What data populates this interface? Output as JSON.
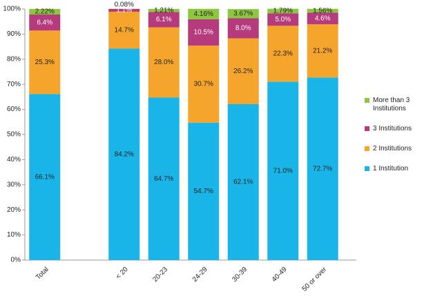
{
  "chart_data": {
    "type": "stacked_bar",
    "categories": [
      "Total",
      null,
      "< 20",
      "20-23",
      "24-29",
      "30-39",
      "40-49",
      "50 or over"
    ],
    "series": [
      {
        "name": "1 Institution",
        "color": "#19b5e8",
        "values": [
          66.1,
          null,
          84.2,
          64.7,
          54.7,
          62.1,
          71.0,
          72.7
        ],
        "value_labels": [
          "66.1%",
          null,
          "84.2%",
          "64.7%",
          "54.7%",
          "62.1%",
          "71.0%",
          "72.7%"
        ]
      },
      {
        "name": "2 Institutions",
        "color": "#f6a52c",
        "values": [
          25.3,
          null,
          14.7,
          28.0,
          30.7,
          26.2,
          22.3,
          21.2
        ],
        "value_labels": [
          "25.3%",
          null,
          "14.7%",
          "28.0%",
          "30.7%",
          "26.2%",
          "22.3%",
          "21.2%"
        ]
      },
      {
        "name": "3 Institutions",
        "color": "#b53b7c",
        "values": [
          6.4,
          null,
          1.1,
          6.1,
          10.5,
          8.0,
          5.0,
          4.6
        ],
        "value_labels": [
          "6.4%",
          null,
          "1.1%",
          "6.1%",
          "10.5%",
          "8.0%",
          "5.0%",
          "4.6%"
        ]
      },
      {
        "name": "More than 3 Institutions",
        "color": "#8dc63f",
        "values": [
          2.22,
          null,
          0.08,
          1.21,
          4.16,
          3.67,
          1.79,
          1.56
        ],
        "value_labels": [
          "2.22%",
          null,
          "0.08%",
          "1.21%",
          "4.16%",
          "3.67%",
          "1.79%",
          "1.56%"
        ]
      }
    ],
    "ylim": [
      0,
      100
    ],
    "yticks": [
      {
        "value": 0,
        "label": "0%"
      },
      {
        "value": 10,
        "label": "10%"
      },
      {
        "value": 20,
        "label": "20%"
      },
      {
        "value": 30,
        "label": "30%"
      },
      {
        "value": 40,
        "label": "40%"
      },
      {
        "value": 50,
        "label": "50%"
      },
      {
        "value": 60,
        "label": "60%"
      },
      {
        "value": 70,
        "label": "70%"
      },
      {
        "value": 80,
        "label": "80%"
      },
      {
        "value": 90,
        "label": "90%"
      },
      {
        "value": 100,
        "label": "100%"
      }
    ],
    "grid": false
  }
}
